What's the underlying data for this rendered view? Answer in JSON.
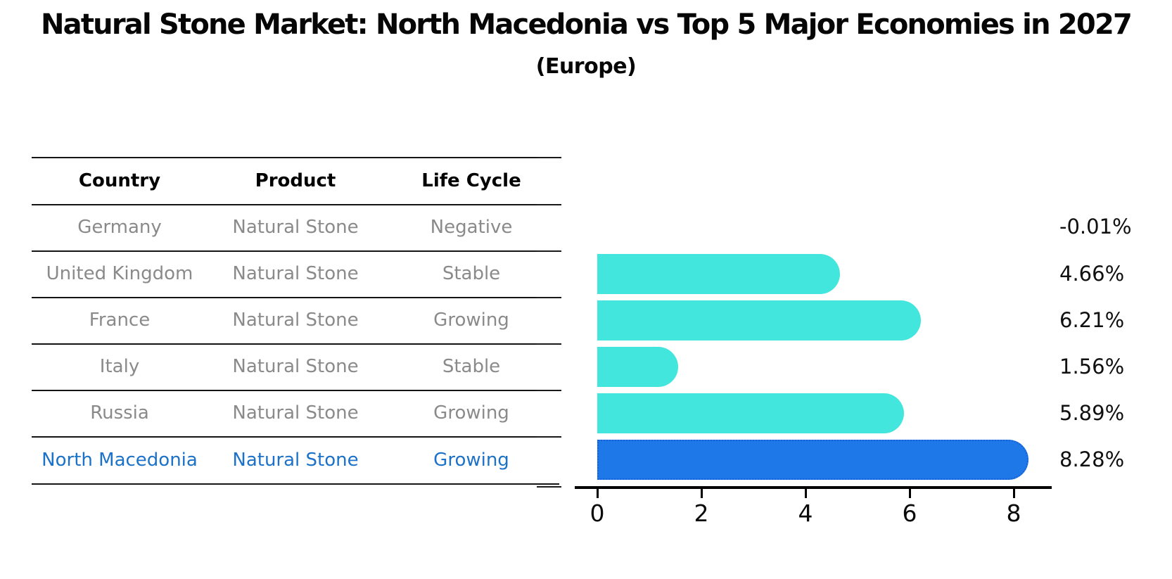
{
  "title": "Natural Stone Market: North Macedonia vs Top 5 Major Economies in 2027",
  "subtitle": "(Europe)",
  "table": {
    "headers": [
      "Country",
      "Product",
      "Life Cycle"
    ],
    "rows": [
      {
        "country": "Germany",
        "product": "Natural Stone",
        "life_cycle": "Negative",
        "highlighted": false
      },
      {
        "country": "United Kingdom",
        "product": "Natural Stone",
        "life_cycle": "Stable",
        "highlighted": false
      },
      {
        "country": "France",
        "product": "Natural Stone",
        "life_cycle": "Growing",
        "highlighted": false
      },
      {
        "country": "Italy",
        "product": "Natural Stone",
        "life_cycle": "Stable",
        "highlighted": false
      },
      {
        "country": "Russia",
        "product": "Natural Stone",
        "life_cycle": "Growing",
        "highlighted": false
      },
      {
        "country": "North Macedonia",
        "product": "Natural Stone",
        "life_cycle": "Growing",
        "highlighted": true
      }
    ]
  },
  "chart_data": {
    "type": "bar",
    "orientation": "horizontal",
    "categories": [
      "Germany",
      "United Kingdom",
      "France",
      "Italy",
      "Russia",
      "North Macedonia"
    ],
    "values": [
      -0.01,
      4.66,
      6.21,
      1.56,
      5.89,
      8.28
    ],
    "value_labels": [
      "-0.01%",
      "4.66%",
      "6.21%",
      "1.56%",
      "5.89%",
      "8.28%"
    ],
    "x_ticks": [
      "0",
      "2",
      "4",
      "6",
      "8"
    ],
    "x_tick_values": [
      0,
      2,
      4,
      6,
      8
    ],
    "xlim": [
      -0.45,
      8.75
    ],
    "grid": false,
    "legend": false,
    "title": "",
    "xlabel": "",
    "ylabel": ""
  },
  "colors": {
    "bar_default": "#42E6DD",
    "bar_highlight": "#1E78E8",
    "bar_highlight_border": "#1761D6",
    "highlight_text": "#1c72c8",
    "row_text": "#8a8a8a",
    "header_text": "#000000",
    "axis": "#000000"
  }
}
